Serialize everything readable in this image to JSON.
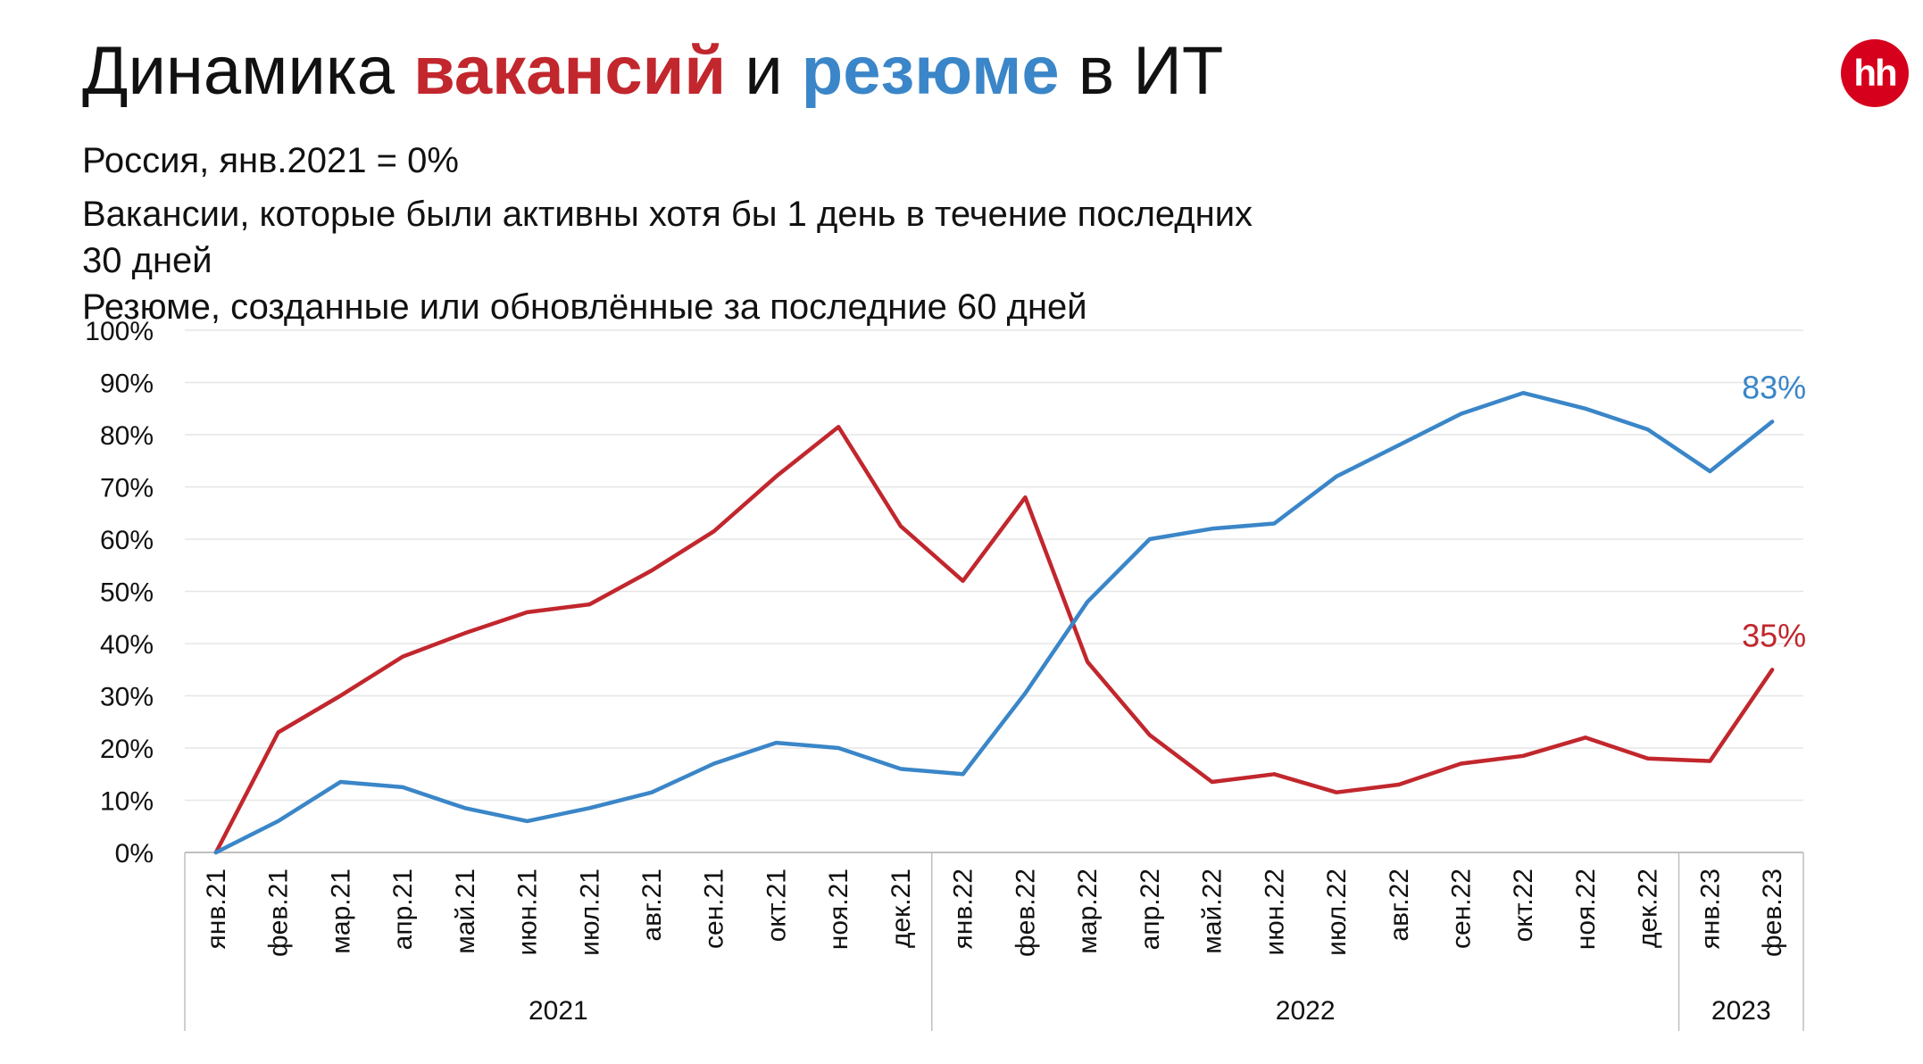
{
  "header": {
    "title_prefix": "Динамика ",
    "title_vacancies": "вакансий",
    "title_middle": " и ",
    "title_resumes": "резюме",
    "title_suffix": " в ИТ",
    "logo_text": "hh",
    "subtitle_1": "Россия, янв.2021 = 0%",
    "subtitle_2": "Вакансии, которые были активны хотя бы 1 день в течение последних",
    "subtitle_3": "30 дней",
    "subtitle_4": "Резюме, созданные или обновлённые за последние 60 дней"
  },
  "colors": {
    "vacancies": "#c1272d",
    "resumes": "#3a86c8",
    "grid": "#e6e6e6",
    "axis": "#bfbfbf",
    "logo": "#d6001c"
  },
  "chart_data": {
    "type": "line",
    "title": "Динамика вакансий и резюме в ИТ",
    "xlabel": "",
    "ylabel": "",
    "ylim": [
      0,
      100
    ],
    "y_ticks": [
      "0%",
      "10%",
      "20%",
      "30%",
      "40%",
      "50%",
      "60%",
      "70%",
      "80%",
      "90%",
      "100%"
    ],
    "categories": [
      "янв.21",
      "фев.21",
      "мар.21",
      "апр.21",
      "май.21",
      "июн.21",
      "июл.21",
      "авг.21",
      "сен.21",
      "окт.21",
      "ноя.21",
      "дек.21",
      "янв.22",
      "фев.22",
      "мар.22",
      "апр.22",
      "май.22",
      "июн.22",
      "июл.22",
      "авг.22",
      "сен.22",
      "окт.22",
      "ноя.22",
      "дек.22",
      "янв.23",
      "фев.23"
    ],
    "years": [
      {
        "label": "2021",
        "count": 12
      },
      {
        "label": "2022",
        "count": 12
      },
      {
        "label": "2023",
        "count": 2
      }
    ],
    "series": [
      {
        "name": "вакансий",
        "color": "#c1272d",
        "values": [
          0,
          23,
          30,
          37.5,
          42,
          46,
          47.5,
          54,
          61.5,
          72,
          81.5,
          62.5,
          52,
          68,
          36.5,
          22.5,
          13.5,
          15,
          11.5,
          13,
          17,
          18.5,
          22,
          18,
          17.5,
          35
        ],
        "end_label": "35%"
      },
      {
        "name": "резюме",
        "color": "#3a86c8",
        "values": [
          0,
          6,
          13.5,
          12.5,
          8.5,
          6,
          8.5,
          11.5,
          17,
          21,
          20,
          16,
          15,
          30.5,
          48,
          60,
          62,
          63,
          72,
          78,
          84,
          88,
          85,
          81,
          73,
          82.5
        ],
        "end_label": "83%"
      }
    ],
    "grid": true,
    "legend": "none"
  }
}
